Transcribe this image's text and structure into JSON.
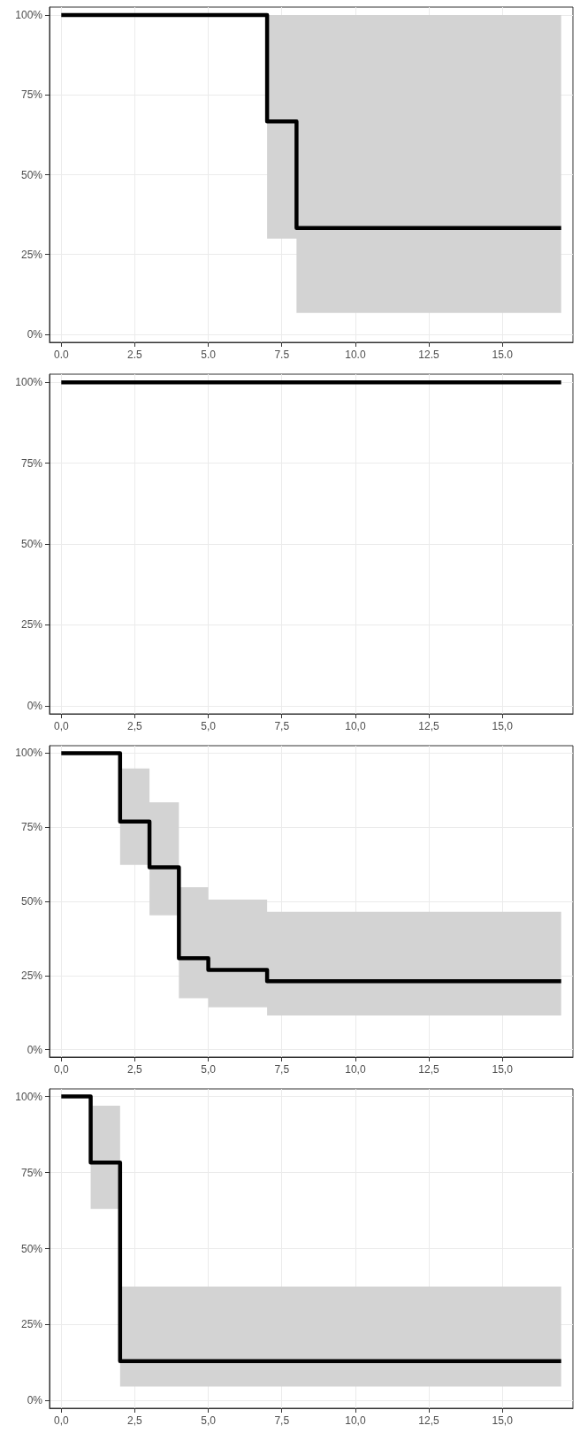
{
  "chart_data": [
    {
      "type": "step",
      "x": [
        0,
        7,
        8,
        17
      ],
      "xlim": [
        -0.4,
        17.4
      ],
      "ylim": [
        -2.5,
        102.5
      ],
      "grid": true,
      "xticks": [
        {
          "value": 0,
          "label": "0.0"
        },
        {
          "value": 2.5,
          "label": "2.5"
        },
        {
          "value": 5,
          "label": "5.0"
        },
        {
          "value": 7.5,
          "label": "7.5"
        },
        {
          "value": 10,
          "label": "10.0"
        },
        {
          "value": 12.5,
          "label": "12.5"
        },
        {
          "value": 15,
          "label": "15.0"
        }
      ],
      "yticks": [
        {
          "value": 0,
          "label": "0%"
        },
        {
          "value": 25,
          "label": "25%"
        },
        {
          "value": 50,
          "label": "50%"
        },
        {
          "value": 75,
          "label": "75%"
        },
        {
          "value": 100,
          "label": "100%"
        }
      ],
      "series": [
        {
          "color": "#000000",
          "values": [
            100,
            66.7,
            33.3,
            33.3
          ],
          "lower": [
            null,
            30,
            6.7,
            6.7
          ],
          "upper": [
            null,
            100,
            100,
            100
          ]
        }
      ]
    },
    {
      "type": "step",
      "x": [
        0,
        17
      ],
      "xlim": [
        -0.4,
        17.4
      ],
      "ylim": [
        -2.5,
        102.5
      ],
      "grid": true,
      "xticks": [
        {
          "value": 0,
          "label": "0,0"
        },
        {
          "value": 2.5,
          "label": "2,5"
        },
        {
          "value": 5,
          "label": "5,0"
        },
        {
          "value": 7.5,
          "label": "7,5"
        },
        {
          "value": 10,
          "label": "10,0"
        },
        {
          "value": 12.5,
          "label": "12,5"
        },
        {
          "value": 15,
          "label": "15,0"
        }
      ],
      "yticks": [
        {
          "value": 0,
          "label": "0%"
        },
        {
          "value": 25,
          "label": "25%"
        },
        {
          "value": 50,
          "label": "50%"
        },
        {
          "value": 75,
          "label": "75%"
        },
        {
          "value": 100,
          "label": "100%"
        }
      ],
      "series": [
        {
          "color": "#000000",
          "values": [
            100,
            100
          ]
        }
      ]
    },
    {
      "type": "step",
      "x": [
        0,
        2,
        3,
        4,
        5,
        7,
        17
      ],
      "xlim": [
        -0.4,
        17.4
      ],
      "ylim": [
        -2.5,
        102.5
      ],
      "grid": true,
      "xticks": [
        {
          "value": 0,
          "label": "0,0"
        },
        {
          "value": 2.5,
          "label": "2,5"
        },
        {
          "value": 5,
          "label": "5,0"
        },
        {
          "value": 7.5,
          "label": "7,5"
        },
        {
          "value": 10,
          "label": "10,0"
        },
        {
          "value": 12.5,
          "label": "12,5"
        },
        {
          "value": 15,
          "label": "15,0"
        }
      ],
      "yticks": [
        {
          "value": 0,
          "label": "0%"
        },
        {
          "value": 25,
          "label": "25%"
        },
        {
          "value": 50,
          "label": "50%"
        },
        {
          "value": 75,
          "label": "75%"
        },
        {
          "value": 100,
          "label": "100%"
        }
      ],
      "series": [
        {
          "color": "#000000",
          "values": [
            100,
            76.9,
            61.5,
            30.8,
            26.9,
            23.1,
            23.1
          ],
          "lower": [
            null,
            62.3,
            45.3,
            17.3,
            14.3,
            11.5,
            11.5
          ],
          "upper": [
            null,
            94.8,
            83.4,
            54.8,
            50.6,
            46.5,
            46.5
          ]
        }
      ]
    },
    {
      "type": "step",
      "x": [
        0,
        1,
        2,
        17
      ],
      "xlim": [
        -0.4,
        17.4
      ],
      "ylim": [
        -2.5,
        102.5
      ],
      "grid": true,
      "xticks": [
        {
          "value": 0,
          "label": "0,0"
        },
        {
          "value": 2.5,
          "label": "2,5"
        },
        {
          "value": 5,
          "label": "5,0"
        },
        {
          "value": 7.5,
          "label": "7,5"
        },
        {
          "value": 10,
          "label": "10,0"
        },
        {
          "value": 12.5,
          "label": "12,5"
        },
        {
          "value": 15,
          "label": "15,0"
        }
      ],
      "yticks": [
        {
          "value": 0,
          "label": "0%"
        },
        {
          "value": 25,
          "label": "25%"
        },
        {
          "value": 50,
          "label": "50%"
        },
        {
          "value": 75,
          "label": "75%"
        },
        {
          "value": 100,
          "label": "100%"
        }
      ],
      "series": [
        {
          "color": "#000000",
          "values": [
            100,
            78.3,
            13.0,
            13.0
          ],
          "lower": [
            null,
            63,
            4.6,
            4.6
          ],
          "upper": [
            null,
            97,
            37.5,
            37.5
          ]
        }
      ]
    }
  ]
}
